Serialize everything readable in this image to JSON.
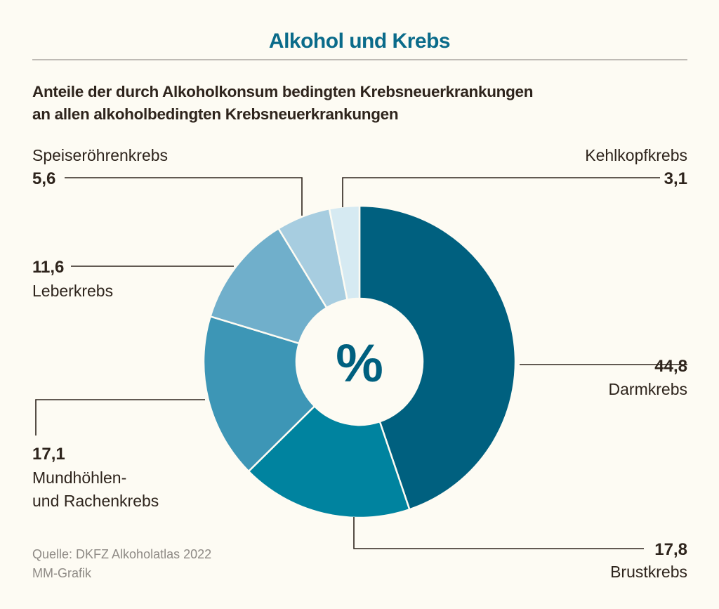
{
  "chart_data": {
    "type": "pie",
    "title": "Alkohol und Krebs",
    "subtitle_line1": "Anteile der durch Alkoholkonsum bedingten Krebsneuerkrankungen",
    "subtitle_line2": "an allen alkoholbedingten Krebsneuerkrankungen",
    "center_label": "%",
    "slices": [
      {
        "label": "Darmkrebs",
        "value": 44.8,
        "value_label": "44,8",
        "color": "#00607f"
      },
      {
        "label": "Brustkrebs",
        "value": 17.8,
        "value_label": "17,8",
        "color": "#00839f"
      },
      {
        "label": "Mundhöhlen- und Rachenkrebs",
        "label_line1": "Mundhöhlen-",
        "label_line2": "und Rachenkrebs",
        "value": 17.1,
        "value_label": "17,1",
        "color": "#3d96b6"
      },
      {
        "label": "Leberkrebs",
        "value": 11.6,
        "value_label": "11,6",
        "color": "#70afcb"
      },
      {
        "label": "Speiseröhrenkrebs",
        "value": 5.6,
        "value_label": "5,6",
        "color": "#a7cde0"
      },
      {
        "label": "Kehlkopfkrebs",
        "value": 3.1,
        "value_label": "3,1",
        "color": "#d6eaf2"
      }
    ],
    "source_line1": "Quelle: DKFZ Alkoholatlas 2022",
    "source_line2": "MM-Grafik"
  },
  "colors": {
    "title": "#0a6b8a",
    "text": "#2e241c",
    "rule": "#9a9590",
    "source": "#8e8a85",
    "background": "#fdfbf3",
    "center_label": "#00607f"
  }
}
